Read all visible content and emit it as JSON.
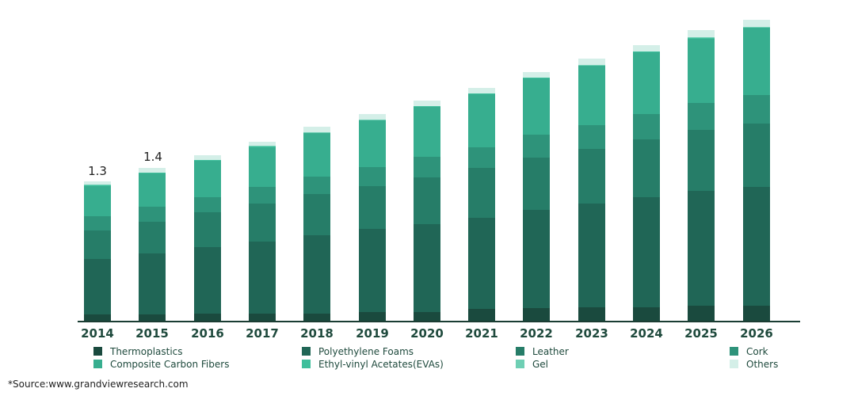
{
  "chart_data": {
    "type": "bar",
    "stacked": true,
    "title": "",
    "xlabel": "",
    "ylabel": "",
    "categories": [
      "2014",
      "2015",
      "2016",
      "2017",
      "2018",
      "2019",
      "2020",
      "2021",
      "2022",
      "2023",
      "2024",
      "2025",
      "2026"
    ],
    "totals_labeled": {
      "2014": "1.3",
      "2015": "1.4"
    },
    "series": [
      {
        "name": "Thermoplastics",
        "color": "#1a4a3e",
        "values": [
          0.06,
          0.06,
          0.07,
          0.07,
          0.07,
          0.08,
          0.08,
          0.11,
          0.12,
          0.13,
          0.13,
          0.14,
          0.14
        ]
      },
      {
        "name": "Polyethylene Foams",
        "color": "#206656",
        "values": [
          0.53,
          0.58,
          0.63,
          0.68,
          0.74,
          0.79,
          0.84,
          0.87,
          0.93,
          0.98,
          1.04,
          1.09,
          1.13
        ]
      },
      {
        "name": "Leather",
        "color": "#267d68",
        "values": [
          0.27,
          0.3,
          0.33,
          0.36,
          0.39,
          0.41,
          0.44,
          0.47,
          0.5,
          0.52,
          0.55,
          0.58,
          0.6
        ]
      },
      {
        "name": "Cork",
        "color": "#2e937a",
        "values": [
          0.13,
          0.14,
          0.14,
          0.16,
          0.17,
          0.18,
          0.2,
          0.2,
          0.22,
          0.23,
          0.24,
          0.26,
          0.27
        ]
      },
      {
        "name": "Composite Carbon Fibers",
        "color": "#37ae8f",
        "values": [
          0.29,
          0.32,
          0.35,
          0.38,
          0.41,
          0.44,
          0.47,
          0.5,
          0.53,
          0.56,
          0.59,
          0.61,
          0.64
        ]
      },
      {
        "name": "Ethyl-vinyl Acetates(EVAs)",
        "color": "#3fbf9c",
        "values": [
          0.005,
          0.005,
          0.005,
          0.005,
          0.005,
          0.005,
          0.005,
          0.005,
          0.005,
          0.005,
          0.005,
          0.005,
          0.005
        ]
      },
      {
        "name": "Gel",
        "color": "#6fcfb4",
        "values": [
          0.005,
          0.005,
          0.005,
          0.005,
          0.005,
          0.005,
          0.005,
          0.005,
          0.005,
          0.005,
          0.005,
          0.005,
          0.005
        ]
      },
      {
        "name": "Others",
        "color": "#d4efe8",
        "values": [
          0.03,
          0.04,
          0.04,
          0.04,
          0.05,
          0.05,
          0.05,
          0.05,
          0.05,
          0.06,
          0.06,
          0.07,
          0.07
        ]
      }
    ],
    "legend_position": "bottom",
    "grid": false
  },
  "legend": [
    {
      "label": "Thermoplastics",
      "color": "#1a4a3e"
    },
    {
      "label": "Polyethylene Foams",
      "color": "#206656"
    },
    {
      "label": "Leather",
      "color": "#267d68"
    },
    {
      "label": "Cork",
      "color": "#2e937a"
    },
    {
      "label": "Composite Carbon Fibers",
      "color": "#37ae8f"
    },
    {
      "label": "Ethyl-vinyl Acetates(EVAs)",
      "color": "#3fbf9c"
    },
    {
      "label": "Gel",
      "color": "#6fcfb4"
    },
    {
      "label": "Others",
      "color": "#d4efe8"
    }
  ],
  "labels": {
    "l2014": "1.3",
    "l2015": "1.4"
  },
  "source": "*Source:www.grandviewresearch.com"
}
